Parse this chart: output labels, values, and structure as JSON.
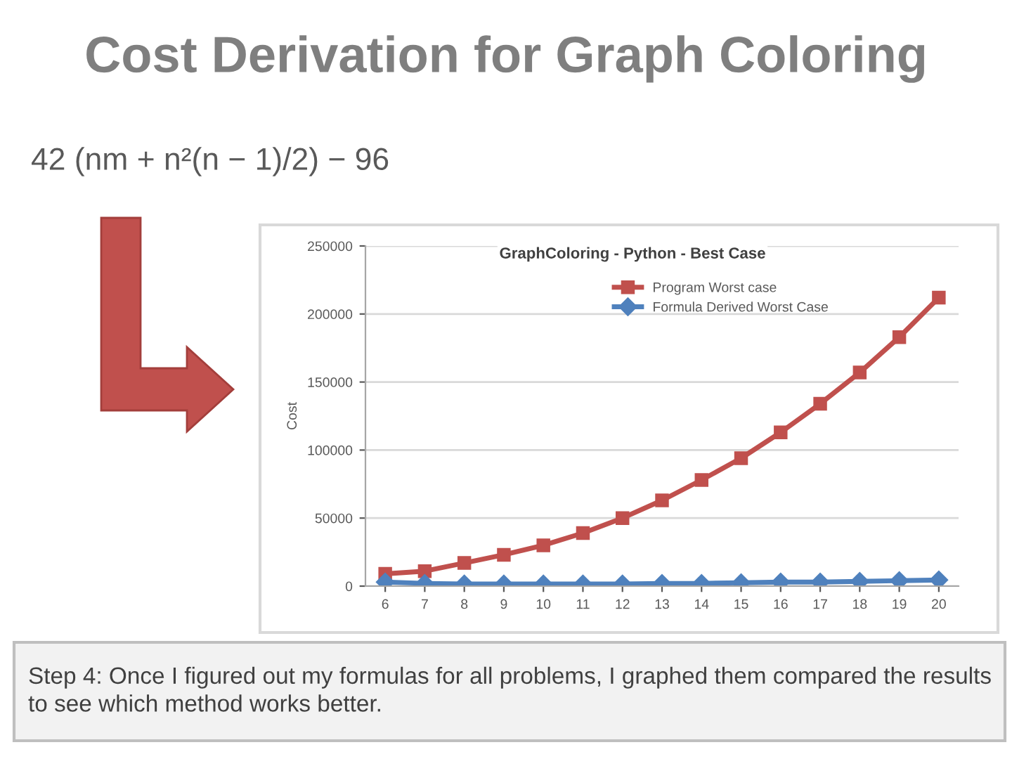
{
  "chart_data": {
    "type": "line",
    "title": "Cost Derivation for Graph Coloring",
    "subtitle": "GraphColoring - Python - Best Case",
    "ylabel": "Cost",
    "categories": [
      "6",
      "7",
      "8",
      "9",
      "10",
      "11",
      "12",
      "13",
      "14",
      "15",
      "16",
      "17",
      "18",
      "19",
      "20"
    ],
    "series": [
      {
        "name": "Program Worst case",
        "color": "#c0504d",
        "marker": "square",
        "values": [
          9000,
          11000,
          17000,
          23000,
          30000,
          39000,
          50000,
          63000,
          78000,
          94000,
          113000,
          134000,
          157000,
          183000,
          212000
        ]
      },
      {
        "name": "Formula Derived Worst Case",
        "color": "#4f81bd",
        "marker": "diamond",
        "values": [
          3000,
          2000,
          1500,
          1500,
          1500,
          1500,
          1500,
          2000,
          2000,
          2500,
          3000,
          3000,
          3500,
          4000,
          4500
        ]
      }
    ],
    "ylim": [
      0,
      250000
    ],
    "yticks": [
      0,
      50000,
      100000,
      150000,
      200000,
      250000
    ],
    "grid": "y",
    "legend": "top",
    "line_style": "solid",
    "annotations": [
      "42 (nm + n²(n − 1)/2) − 96",
      "Step 4: Once I figured out my formulas for all problems, I graphed them compared the results to see which method works better."
    ]
  }
}
